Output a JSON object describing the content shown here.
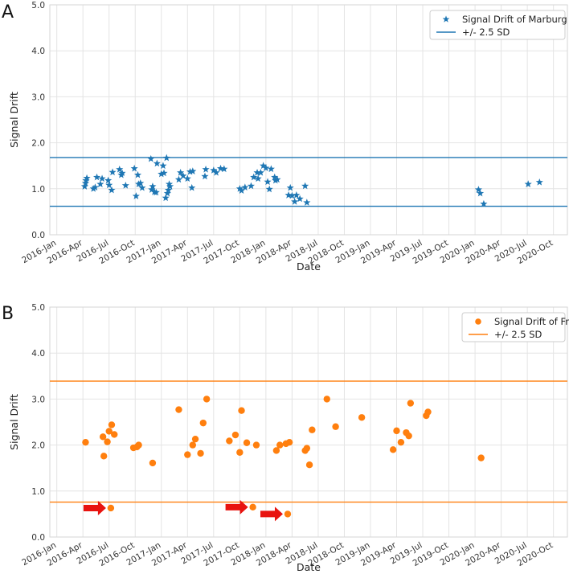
{
  "chart_data": [
    {
      "type": "scatter",
      "panel_label": "A",
      "xlabel": "Date",
      "ylabel": "Signal Drift",
      "ylim": [
        0,
        5
      ],
      "y_ticks": [
        "0.0",
        "1.0",
        "2.0",
        "3.0",
        "4.0",
        "5.0"
      ],
      "x_ticks": [
        "2016-Jan",
        "2016-Apr",
        "2016-Jul",
        "2016-Oct",
        "2017-Jan",
        "2017-Apr",
        "2017-Jul",
        "2017-Oct",
        "2018-Jan",
        "2018-Apr",
        "2018-Jul",
        "2018-Oct",
        "2019-Jan",
        "2019-Apr",
        "2019-Jul",
        "2019-Oct",
        "2020-Jan",
        "2020-Apr",
        "2020-Jul",
        "2020-Oct"
      ],
      "legend_position": "top-right",
      "color": "#1f77b4",
      "series": [
        {
          "name": "Signal Drift of Marburg",
          "marker": "star",
          "points": [
            [
              3.2,
              1.05
            ],
            [
              3.3,
              1.12
            ],
            [
              3.35,
              1.18
            ],
            [
              3.45,
              1.23
            ],
            [
              4.2,
              1.0
            ],
            [
              4.4,
              1.03
            ],
            [
              4.6,
              1.25
            ],
            [
              5.0,
              1.1
            ],
            [
              5.2,
              1.22
            ],
            [
              5.9,
              1.18
            ],
            [
              6.0,
              1.08
            ],
            [
              6.3,
              0.97
            ],
            [
              6.4,
              1.36
            ],
            [
              7.2,
              1.42
            ],
            [
              7.4,
              1.3
            ],
            [
              7.5,
              1.34
            ],
            [
              7.9,
              1.07
            ],
            [
              8.9,
              1.44
            ],
            [
              9.1,
              0.84
            ],
            [
              9.3,
              1.3
            ],
            [
              9.4,
              1.1
            ],
            [
              9.6,
              1.12
            ],
            [
              9.8,
              1.02
            ],
            [
              10.8,
              1.65
            ],
            [
              10.9,
              0.98
            ],
            [
              11.0,
              1.05
            ],
            [
              11.2,
              0.93
            ],
            [
              11.4,
              0.92
            ],
            [
              11.5,
              1.55
            ],
            [
              12.0,
              1.32
            ],
            [
              12.2,
              1.5
            ],
            [
              12.3,
              1.34
            ],
            [
              12.5,
              0.8
            ],
            [
              12.6,
              1.67
            ],
            [
              12.7,
              0.9
            ],
            [
              12.8,
              0.97
            ],
            [
              12.9,
              1.1
            ],
            [
              13.0,
              1.05
            ],
            [
              14.0,
              1.2
            ],
            [
              14.2,
              1.35
            ],
            [
              14.5,
              1.28
            ],
            [
              15.0,
              1.22
            ],
            [
              15.3,
              1.37
            ],
            [
              15.5,
              1.02
            ],
            [
              15.6,
              1.38
            ],
            [
              17.0,
              1.27
            ],
            [
              17.1,
              1.42
            ],
            [
              18.0,
              1.4
            ],
            [
              18.3,
              1.35
            ],
            [
              18.8,
              1.44
            ],
            [
              19.2,
              1.43
            ],
            [
              21.0,
              1.0
            ],
            [
              21.2,
              0.96
            ],
            [
              21.6,
              1.03
            ],
            [
              22.3,
              1.06
            ],
            [
              22.6,
              1.25
            ],
            [
              23.0,
              1.35
            ],
            [
              23.1,
              1.22
            ],
            [
              23.4,
              1.35
            ],
            [
              23.7,
              1.5
            ],
            [
              24.0,
              1.45
            ],
            [
              24.2,
              1.15
            ],
            [
              24.4,
              0.99
            ],
            [
              24.6,
              1.43
            ],
            [
              25.0,
              1.25
            ],
            [
              25.1,
              1.18
            ],
            [
              25.3,
              1.2
            ],
            [
              26.6,
              0.86
            ],
            [
              26.8,
              1.02
            ],
            [
              27.0,
              0.85
            ],
            [
              27.3,
              0.72
            ],
            [
              27.5,
              0.86
            ],
            [
              27.9,
              0.78
            ],
            [
              28.5,
              1.06
            ],
            [
              28.7,
              0.7
            ],
            [
              48.4,
              0.98
            ],
            [
              48.6,
              0.9
            ],
            [
              49.0,
              0.67
            ],
            [
              54.1,
              1.1
            ],
            [
              55.4,
              1.14
            ]
          ]
        },
        {
          "name": "+/- 2.5 SD",
          "type": "hline",
          "values": [
            1.68,
            0.62
          ]
        }
      ]
    },
    {
      "type": "scatter",
      "panel_label": "B",
      "xlabel": "Date",
      "ylabel": "Signal Drift",
      "ylim": [
        0,
        5
      ],
      "y_ticks": [
        "0.0",
        "1.0",
        "2.0",
        "3.0",
        "4.0",
        "5.0"
      ],
      "x_ticks": [
        "2016-Jan",
        "2016-Apr",
        "2016-Jul",
        "2016-Oct",
        "2017-Jan",
        "2017-Apr",
        "2017-Jul",
        "2017-Oct",
        "2018-Jan",
        "2018-Apr",
        "2018-Jul",
        "2018-Oct",
        "2019-Jan",
        "2019-Apr",
        "2019-Jul",
        "2019-Oct",
        "2020-Jan",
        "2020-Apr",
        "2020-Jul",
        "2020-Oct"
      ],
      "legend_position": "top-right",
      "color": "#ff7f0e",
      "series": [
        {
          "name": "Signal Drift of Frankfurt",
          "marker": "circle",
          "points": [
            [
              3.3,
              2.06
            ],
            [
              5.3,
              2.18
            ],
            [
              5.4,
              1.76
            ],
            [
              5.8,
              2.07
            ],
            [
              6.0,
              2.3
            ],
            [
              6.3,
              2.44
            ],
            [
              6.6,
              2.23
            ],
            [
              6.2,
              0.63
            ],
            [
              8.8,
              1.94
            ],
            [
              9.2,
              1.96
            ],
            [
              9.4,
              2.0
            ],
            [
              11.0,
              1.61
            ],
            [
              14.0,
              2.77
            ],
            [
              15.0,
              1.79
            ],
            [
              15.6,
              2.0
            ],
            [
              15.9,
              2.13
            ],
            [
              16.5,
              1.82
            ],
            [
              16.8,
              2.48
            ],
            [
              17.2,
              3.0
            ],
            [
              19.8,
              2.09
            ],
            [
              20.5,
              2.22
            ],
            [
              21.0,
              1.84
            ],
            [
              21.2,
              2.75
            ],
            [
              21.8,
              2.05
            ],
            [
              22.5,
              0.65
            ],
            [
              22.9,
              2.0
            ],
            [
              25.2,
              1.88
            ],
            [
              25.6,
              2.0
            ],
            [
              26.3,
              2.03
            ],
            [
              26.7,
              2.06
            ],
            [
              26.5,
              0.5
            ],
            [
              28.5,
              1.88
            ],
            [
              28.7,
              1.93
            ],
            [
              29.0,
              1.57
            ],
            [
              29.3,
              2.33
            ],
            [
              31.0,
              3.0
            ],
            [
              32.0,
              2.4
            ],
            [
              35.0,
              2.6
            ],
            [
              38.6,
              1.9
            ],
            [
              39.0,
              2.31
            ],
            [
              39.5,
              2.06
            ],
            [
              40.1,
              2.27
            ],
            [
              40.4,
              2.2
            ],
            [
              40.6,
              2.91
            ],
            [
              42.4,
              2.64
            ],
            [
              42.6,
              2.72
            ],
            [
              48.7,
              1.72
            ]
          ]
        },
        {
          "name": "+/- 2.5 SD",
          "type": "hline",
          "values": [
            3.39,
            0.76
          ]
        }
      ],
      "annotations": [
        {
          "type": "arrow",
          "color": "#e8130f",
          "points_to": [
            6.2,
            0.63
          ]
        },
        {
          "type": "arrow",
          "color": "#e8130f",
          "points_to": [
            22.5,
            0.65
          ]
        },
        {
          "type": "arrow",
          "color": "#e8130f",
          "points_to": [
            26.5,
            0.5
          ]
        }
      ]
    }
  ]
}
